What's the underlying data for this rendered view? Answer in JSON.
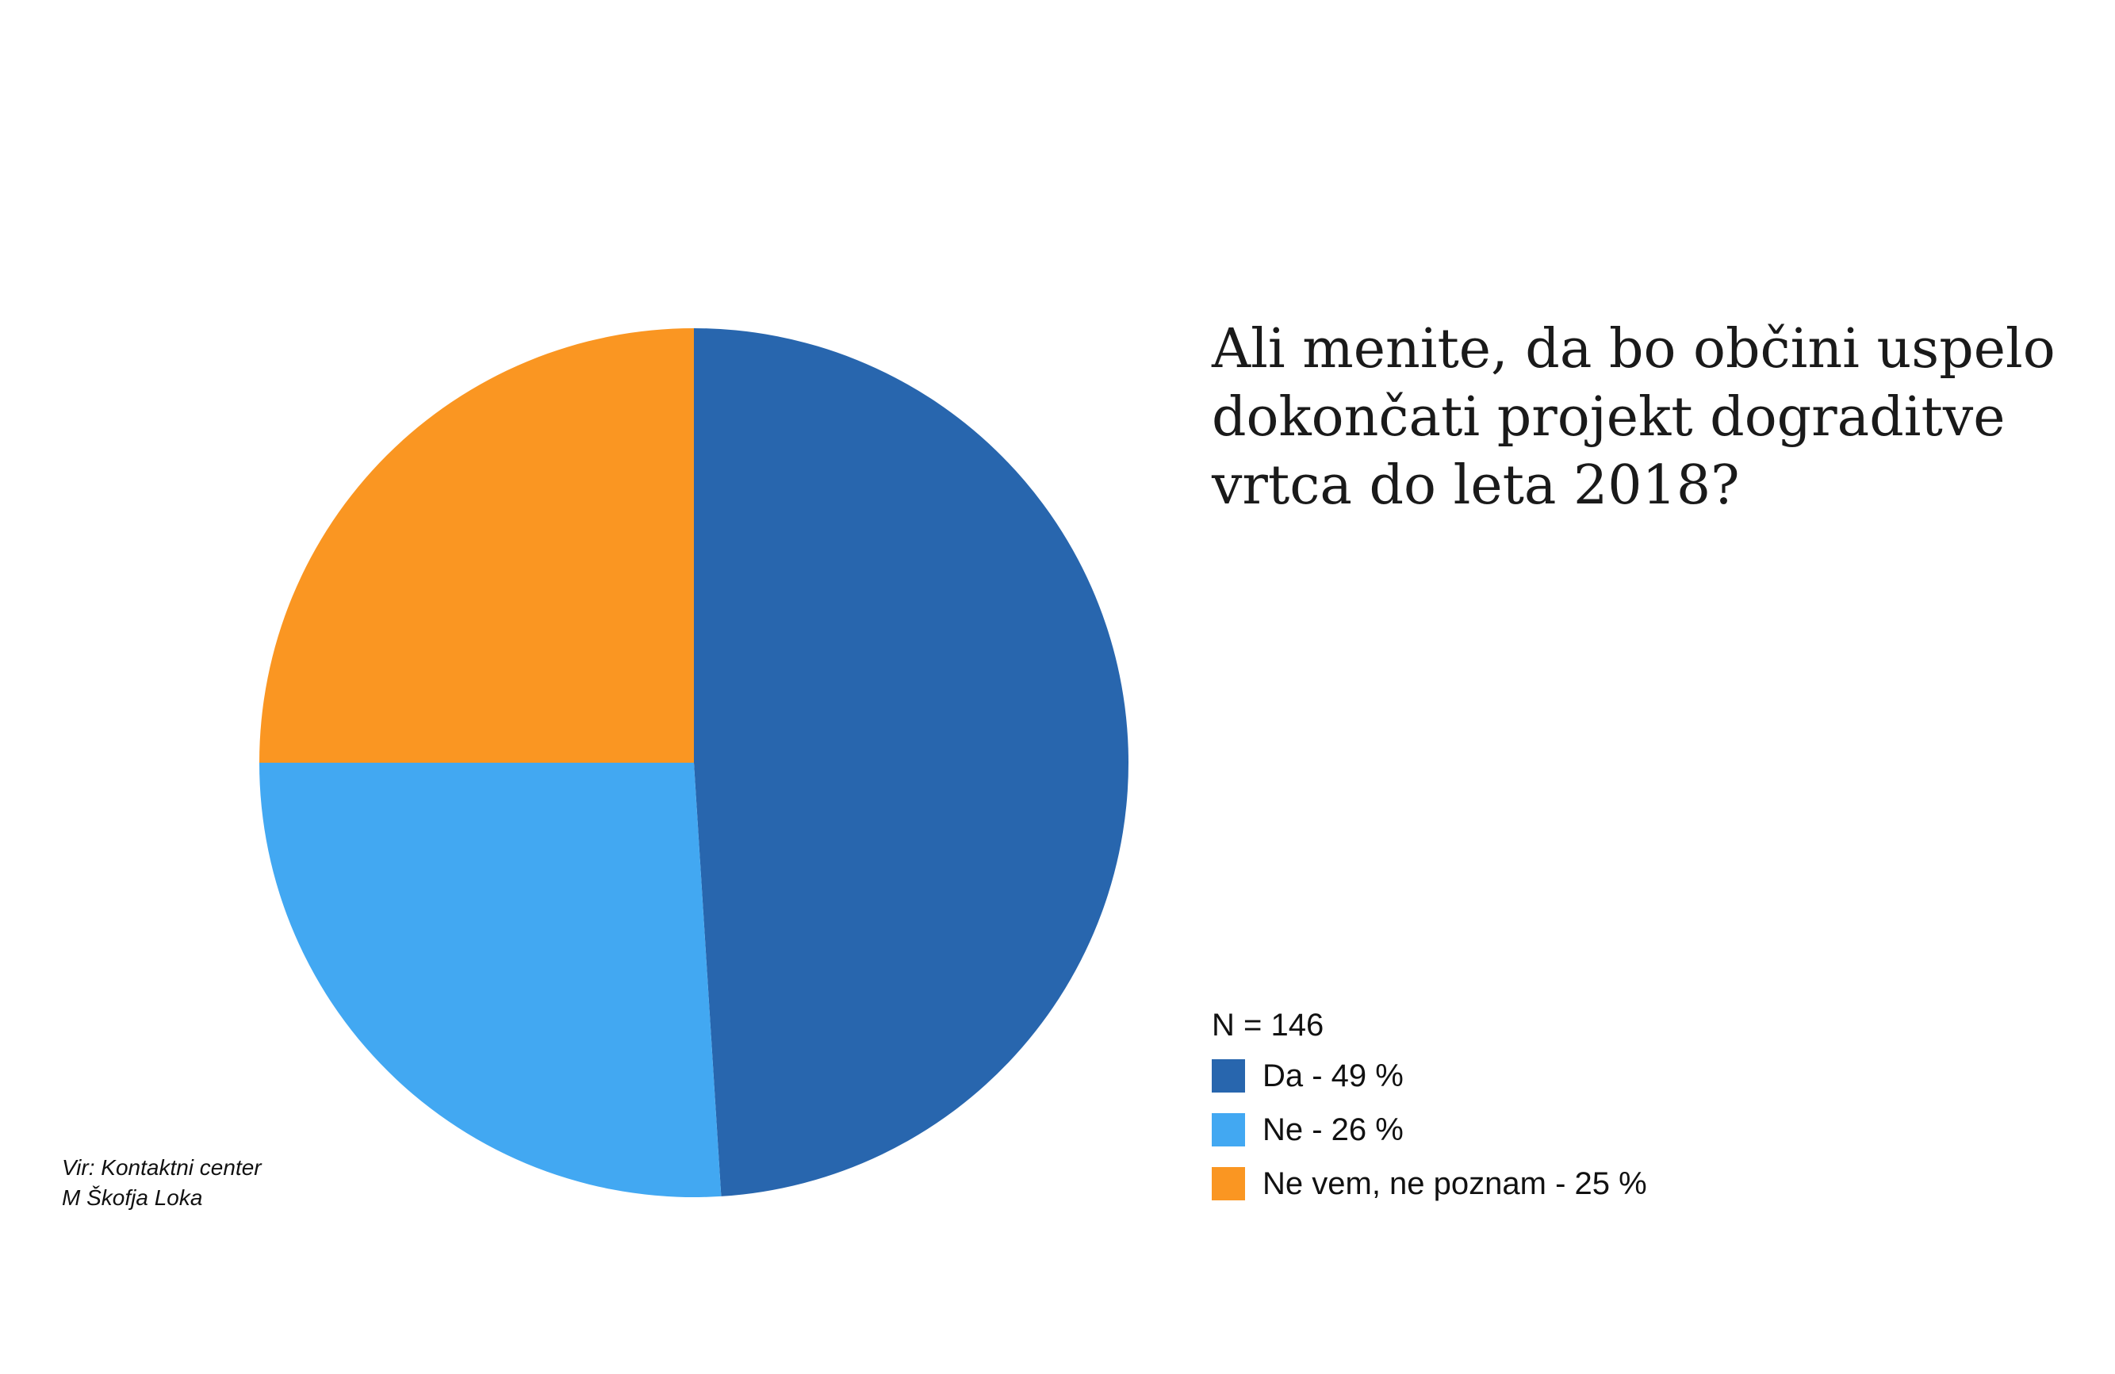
{
  "chart_data": {
    "type": "pie",
    "title_lines": [
      "Ali menite, da bo občini uspelo",
      "dokončati projekt dograditve",
      "vrtca do leta 2018?"
    ],
    "n_label": "N = 146",
    "slices": [
      {
        "label": "Da - 49 %",
        "value": 49,
        "color": "#2866AE"
      },
      {
        "label": "Ne - 26 %",
        "value": 26,
        "color": "#42A8F2"
      },
      {
        "label": "Ne vem, ne poznam - 25 %",
        "value": 25,
        "color": "#FA9622"
      }
    ],
    "legend_placement": "bottom-right"
  },
  "source": {
    "line1": "Vir: Kontaktni center",
    "line2": "M Škofja Loka"
  }
}
